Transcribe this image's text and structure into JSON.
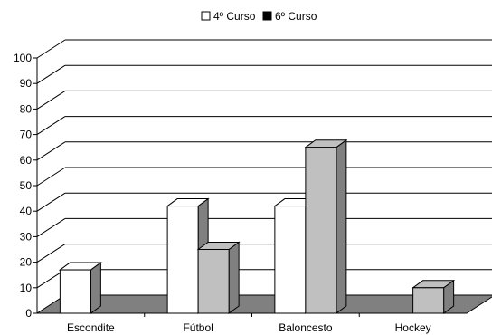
{
  "chart_data": {
    "type": "bar",
    "categories": [
      "Escondite",
      "Fútbol",
      "Baloncesto",
      "Hockey"
    ],
    "series": [
      {
        "name": "4º Curso",
        "values": [
          17,
          42,
          42,
          0
        ],
        "color": "#ffffff"
      },
      {
        "name": "6º Curso",
        "values": [
          0,
          25,
          65,
          10
        ],
        "color": "#c0c0c0"
      }
    ],
    "ylim": [
      0,
      100
    ],
    "yticks": [
      0,
      10,
      20,
      30,
      40,
      50,
      60,
      70,
      80,
      90,
      100
    ],
    "grid": true,
    "legend_position": "top-center",
    "style": "3d",
    "floor_color": "#808080",
    "side_color": "#808080"
  }
}
